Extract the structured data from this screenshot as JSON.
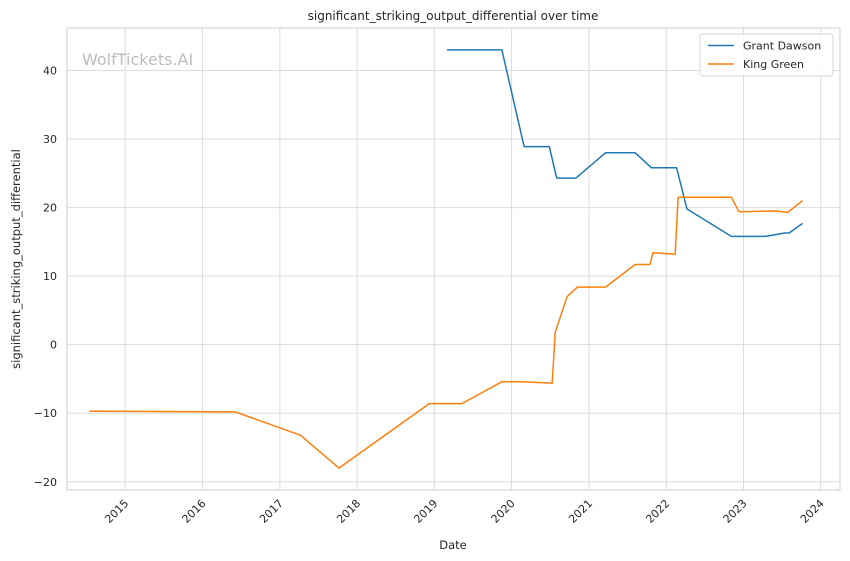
{
  "chart_data": {
    "type": "line",
    "title": "significant_striking_output_differential over time",
    "xlabel": "Date",
    "ylabel": "significant_striking_output_differential",
    "watermark": "WolfTickets.AI",
    "x_ticks": [
      "2015",
      "2016",
      "2017",
      "2018",
      "2019",
      "2020",
      "2021",
      "2022",
      "2023",
      "2024"
    ],
    "y_ticks": [
      -20,
      -10,
      0,
      10,
      20,
      30,
      40
    ],
    "xlim": [
      "2014-04-01",
      "2024-04-01"
    ],
    "ylim": [
      -21.2,
      46.2
    ],
    "grid": true,
    "legend_position": "top-right",
    "series": [
      {
        "name": "Grant Dawson",
        "color": "#1f77b4",
        "points": [
          [
            "2019-03-02",
            43.0
          ],
          [
            "2019-11-16",
            43.0
          ],
          [
            "2020-02-29",
            28.9
          ],
          [
            "2020-06-27",
            28.9
          ],
          [
            "2020-08-01",
            24.3
          ],
          [
            "2020-10-31",
            24.3
          ],
          [
            "2021-03-20",
            28.0
          ],
          [
            "2021-08-07",
            28.0
          ],
          [
            "2021-10-23",
            25.8
          ],
          [
            "2022-02-19",
            25.8
          ],
          [
            "2022-04-09",
            19.8
          ],
          [
            "2022-11-05",
            15.8
          ],
          [
            "2023-04-15",
            15.8
          ],
          [
            "2023-07-15",
            16.3
          ],
          [
            "2023-08-05",
            16.3
          ],
          [
            "2023-10-07",
            17.7
          ]
        ]
      },
      {
        "name": "King Green",
        "color": "#ff7f0e",
        "points": [
          [
            "2014-07-16",
            -9.7
          ],
          [
            "2016-06-04",
            -9.8
          ],
          [
            "2017-04-08",
            -13.2
          ],
          [
            "2017-10-07",
            -18.0
          ],
          [
            "2018-12-08",
            -8.6
          ],
          [
            "2019-05-11",
            -8.6
          ],
          [
            "2019-11-16",
            -5.4
          ],
          [
            "2020-02-15",
            -5.4
          ],
          [
            "2020-07-11",
            -5.6
          ],
          [
            "2020-07-25",
            1.8
          ],
          [
            "2020-09-19",
            7.0
          ],
          [
            "2020-11-07",
            8.4
          ],
          [
            "2021-03-20",
            8.4
          ],
          [
            "2021-08-07",
            11.7
          ],
          [
            "2021-10-16",
            11.7
          ],
          [
            "2021-10-30",
            13.4
          ],
          [
            "2022-02-12",
            13.2
          ],
          [
            "2022-02-26",
            21.5
          ],
          [
            "2022-11-05",
            21.5
          ],
          [
            "2022-12-10",
            19.4
          ],
          [
            "2023-06-03",
            19.5
          ],
          [
            "2023-07-29",
            19.3
          ],
          [
            "2023-10-07",
            21.0
          ]
        ]
      }
    ]
  }
}
